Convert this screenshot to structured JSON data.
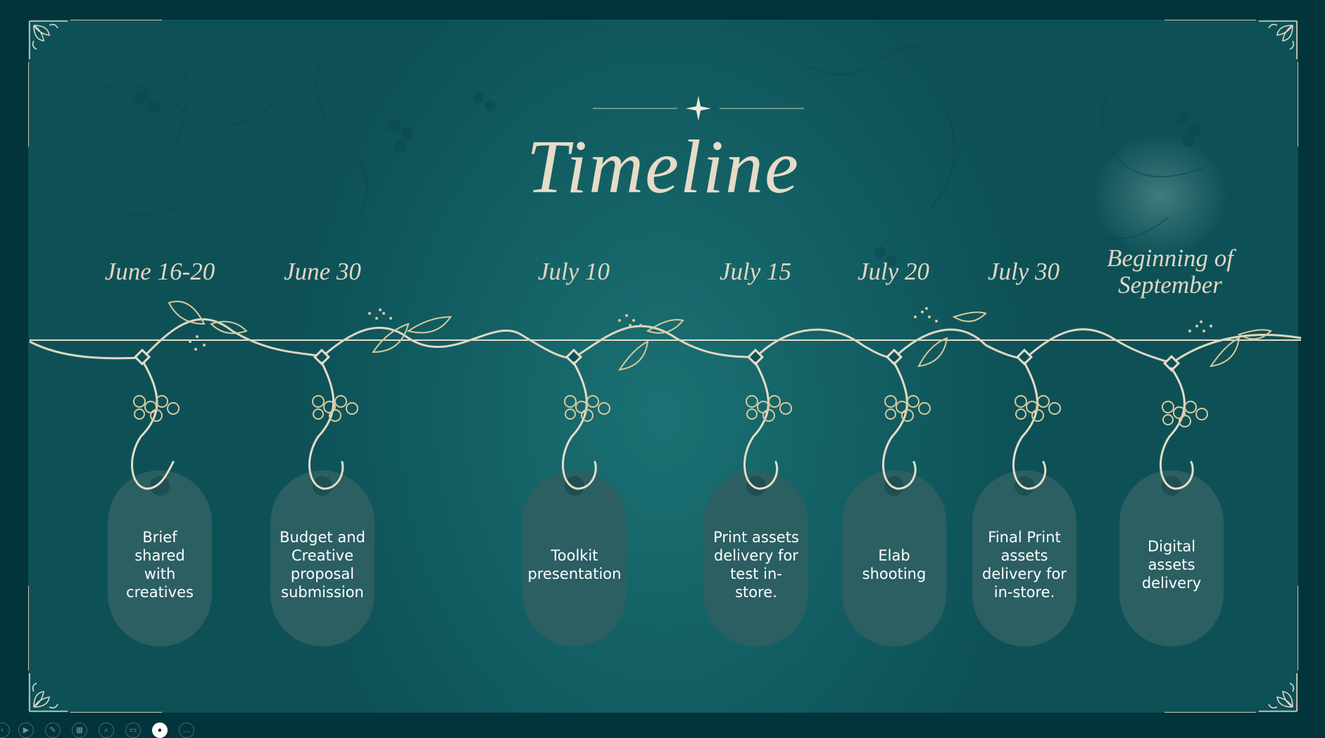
{
  "slide": {
    "title": "Timeline",
    "colors": {
      "background": "#02343b",
      "slide_teal": "#146266",
      "accent_cream": "#e0d6c2",
      "tag_fill": "#2b5f62"
    },
    "milestones": [
      {
        "date": "June 16-20",
        "task": "Brief shared with creatives"
      },
      {
        "date": "June 30",
        "task": "Budget and Creative proposal submission"
      },
      {
        "date": "July 10",
        "task": "Toolkit presentation"
      },
      {
        "date": "July 15",
        "task": "Print assets delivery for test in-store."
      },
      {
        "date": "July 20",
        "task": "Elab shooting"
      },
      {
        "date": "July 30",
        "task": "Final Print assets delivery for in-store."
      },
      {
        "date": "Beginning of September",
        "task": "Digital assets delivery"
      }
    ]
  },
  "toolbar": {
    "buttons": [
      {
        "icon": "previous-icon",
        "glyph": "‹"
      },
      {
        "icon": "play-icon",
        "glyph": "▶"
      },
      {
        "icon": "pen-icon",
        "glyph": "✎"
      },
      {
        "icon": "grid-icon",
        "glyph": "▦"
      },
      {
        "icon": "zoom-icon",
        "glyph": "⌕"
      },
      {
        "icon": "subtitles-icon",
        "glyph": "▭"
      },
      {
        "icon": "camera-icon",
        "glyph": "●"
      },
      {
        "icon": "more-icon",
        "glyph": "…"
      }
    ]
  }
}
